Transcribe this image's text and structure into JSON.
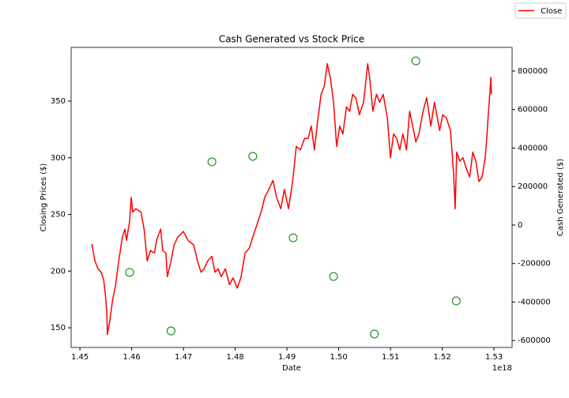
{
  "chart_data": {
    "type": "line",
    "title": "Cash Generated vs Stock Price",
    "xlabel": "Date",
    "ylabel": "Closing Prices ($)",
    "y2label": "Cash Generated ($)",
    "x_offset_label": "1e18",
    "xlim": [
      1.4483,
      1.5335
    ],
    "xticks": [
      1.45,
      1.46,
      1.47,
      1.48,
      1.49,
      {
        "value": 1.5,
        "label": "1.50"
      },
      1.51,
      1.52,
      1.53
    ],
    "ylim": [
      132.6,
      397.4
    ],
    "yticks": [
      150,
      200,
      250,
      300,
      350
    ],
    "y2lim": [
      -635900,
      923000
    ],
    "y2ticks": [
      -600000,
      -400000,
      -200000,
      0,
      200000,
      400000,
      600000,
      800000
    ],
    "legend": "upper right",
    "series": [
      {
        "name": "Close",
        "type": "line",
        "color": "#ff0000",
        "x": [
          1.4523,
          1.4529,
          1.4535,
          1.4541,
          1.4546,
          1.4549,
          1.4552,
          1.4553,
          1.4558,
          1.4563,
          1.4569,
          1.4575,
          1.4582,
          1.4587,
          1.459,
          1.4596,
          1.4599,
          1.4602,
          1.4608,
          1.4618,
          1.4624,
          1.463,
          1.4636,
          1.4644,
          1.4648,
          1.4656,
          1.466,
          1.4666,
          1.4669,
          1.4676,
          1.4682,
          1.4689,
          1.47,
          1.4709,
          1.472,
          1.4727,
          1.4734,
          1.474,
          1.4747,
          1.4755,
          1.4761,
          1.4767,
          1.4773,
          1.4781,
          1.4789,
          1.4796,
          1.4804,
          1.4811,
          1.4819,
          1.4827,
          1.4834,
          1.4842,
          1.485,
          1.4857,
          1.4865,
          1.4873,
          1.488,
          1.4888,
          1.4895,
          1.4903,
          1.4911,
          1.4918,
          1.4926,
          1.4934,
          1.4941,
          1.4947,
          1.4953,
          1.496,
          1.4966,
          1.4972,
          1.4978,
          1.4984,
          1.499,
          1.4996,
          1.5002,
          1.5008,
          1.5015,
          1.5021,
          1.5027,
          1.5033,
          1.504,
          1.5048,
          1.5056,
          1.506,
          1.5066,
          1.5073,
          1.5079,
          1.5086,
          1.5094,
          1.51,
          1.5106,
          1.5112,
          1.5118,
          1.5124,
          1.5131,
          1.5137,
          1.5143,
          1.5149,
          1.5155,
          1.5163,
          1.517,
          1.5178,
          1.5185,
          1.5195,
          1.5201,
          1.5208,
          1.5216,
          1.5222,
          1.5225,
          1.5228,
          1.5234,
          1.524,
          1.5247,
          1.5253,
          1.5259,
          1.5265,
          1.5271,
          1.5277,
          1.5283,
          1.5286,
          1.5289,
          1.5292,
          1.5294,
          1.5295
        ],
        "values": [
          224,
          209,
          202,
          199,
          192,
          180,
          164,
          144,
          157,
          174,
          188,
          209,
          230,
          237,
          227,
          244,
          265,
          252,
          255,
          252,
          237,
          209,
          218,
          216,
          227,
          237,
          218,
          216,
          195,
          209,
          223,
          230,
          235,
          227,
          223,
          209,
          199,
          202,
          209,
          213,
          199,
          202,
          195,
          202,
          188,
          194,
          185,
          194,
          216,
          220,
          230,
          241,
          252,
          265,
          272,
          280,
          265,
          255,
          272,
          255,
          279,
          310,
          307,
          317,
          317,
          328,
          307,
          335,
          356,
          363,
          383,
          370,
          349,
          310,
          328,
          321,
          345,
          341,
          356,
          353,
          338,
          349,
          383,
          370,
          341,
          356,
          349,
          356,
          335,
          300,
          321,
          317,
          307,
          321,
          307,
          341,
          328,
          314,
          321,
          341,
          353,
          328,
          349,
          324,
          338,
          335,
          324,
          286,
          255,
          305,
          297,
          300,
          290,
          283,
          305,
          297,
          279,
          283,
          300,
          317,
          338,
          357,
          371,
          356
        ]
      },
      {
        "type": "scatter",
        "axis": "y2",
        "color": "#008000",
        "x": [
          1.4596,
          1.4676,
          1.4755,
          1.4834,
          1.4912,
          1.499,
          1.5069,
          1.5149,
          1.5227
        ],
        "values": [
          -246000,
          -550000,
          328000,
          357000,
          -66000,
          -267000,
          -566000,
          853000,
          -394000
        ]
      }
    ]
  }
}
